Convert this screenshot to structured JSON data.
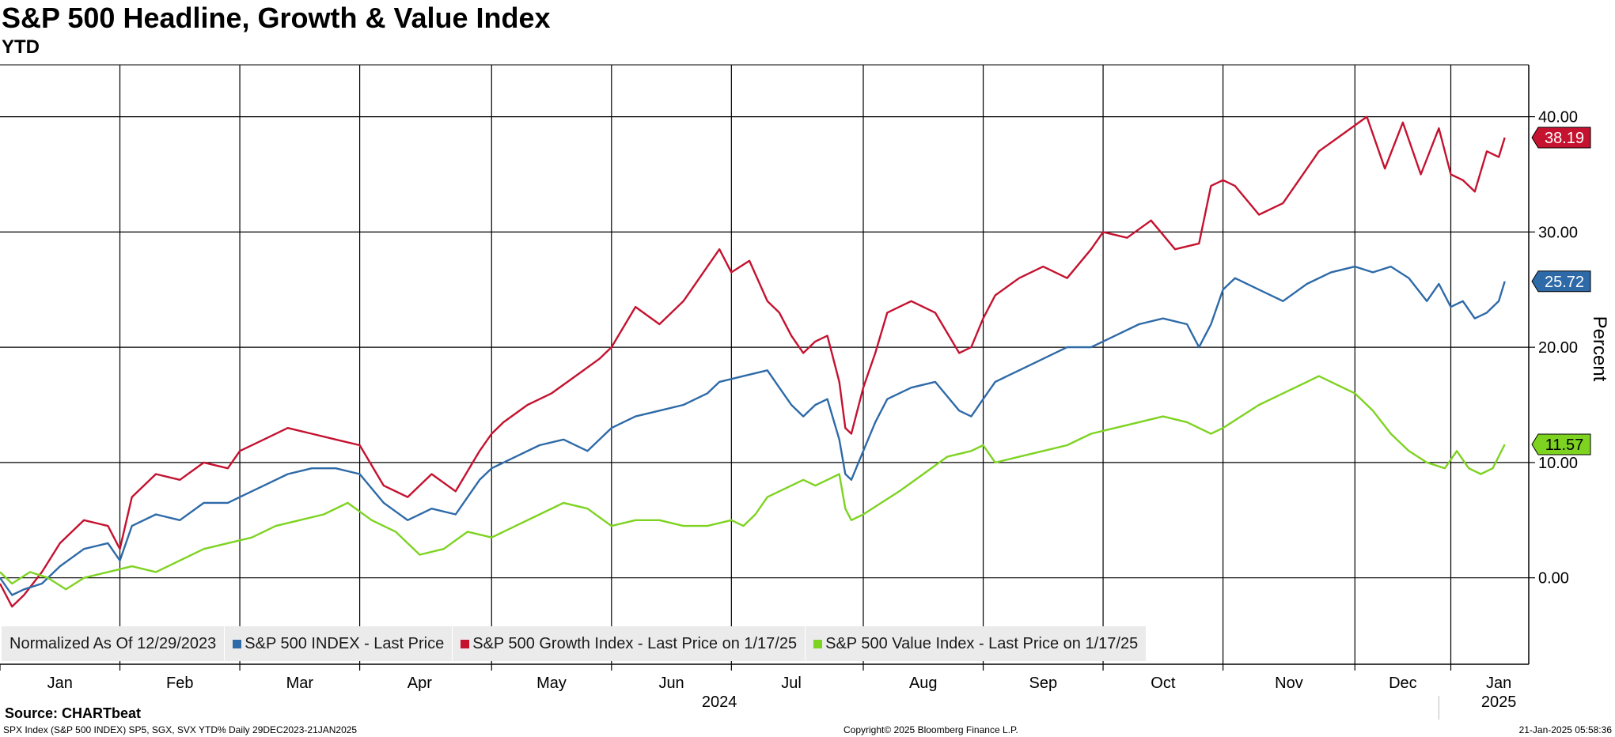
{
  "header": {
    "title": "S&P 500 Headline, Growth & Value Index",
    "subtitle": "YTD"
  },
  "legend": {
    "normalized": "Normalized As Of 12/29/2023",
    "items": [
      {
        "label": "S&P 500 INDEX - Last Price",
        "color": "#2e6aa8"
      },
      {
        "label": "S&P 500 Growth Index - Last Price on 1/17/25",
        "color": "#c4122f"
      },
      {
        "label": "S&P 500 Value Index - Last Price on 1/17/25",
        "color": "#7ed321"
      }
    ]
  },
  "footer": {
    "source": "Source: CHARTbeat",
    "left": "SPX Index (S&P 500 INDEX) SP5, SGX, SVX YTD%  Daily 29DEC2023-21JAN2025",
    "center": "Copyright© 2025 Bloomberg Finance L.P.",
    "right": "21-Jan-2025 05:58:36"
  },
  "chart_data": {
    "type": "line",
    "ylabel": "Percent",
    "ylim": [
      -7.5,
      44.5
    ],
    "yticks": [
      0,
      10,
      20,
      30,
      40
    ],
    "ytick_labels": [
      "0.00",
      "10.00",
      "20.00",
      "30.00",
      "40.00"
    ],
    "months": [
      "Jan",
      "Feb",
      "Mar",
      "Apr",
      "May",
      "Jun",
      "Jul",
      "Aug",
      "Sep",
      "Oct",
      "Nov",
      "Dec",
      "Jan"
    ],
    "month_starts": [
      0,
      1.0,
      2.0,
      3.0,
      4.1,
      5.1,
      6.1,
      7.2,
      8.2,
      9.2,
      10.2,
      11.3,
      12.1
    ],
    "month_label_pos": [
      0.5,
      1.5,
      2.5,
      3.5,
      4.6,
      5.6,
      6.6,
      7.7,
      8.7,
      9.7,
      10.75,
      11.7,
      12.5
    ],
    "xlim": [
      0,
      12.75
    ],
    "year_labels": [
      {
        "text": "2024",
        "pos": 6.0
      },
      {
        "text": "2025",
        "pos": 12.5
      }
    ],
    "series": [
      {
        "name": "S&P 500 Growth Index",
        "color": "#c4122f",
        "last": "38.19",
        "x": [
          0,
          0.1,
          0.2,
          0.35,
          0.5,
          0.7,
          0.9,
          1.0,
          1.1,
          1.3,
          1.5,
          1.7,
          1.9,
          2.0,
          2.2,
          2.4,
          2.6,
          2.8,
          3.0,
          3.2,
          3.4,
          3.6,
          3.8,
          4.0,
          4.1,
          4.2,
          4.4,
          4.6,
          4.8,
          5.0,
          5.1,
          5.3,
          5.5,
          5.7,
          5.9,
          6.0,
          6.1,
          6.25,
          6.4,
          6.5,
          6.6,
          6.7,
          6.8,
          6.9,
          7.0,
          7.05,
          7.1,
          7.2,
          7.3,
          7.4,
          7.6,
          7.8,
          8.0,
          8.1,
          8.2,
          8.3,
          8.5,
          8.7,
          8.9,
          9.1,
          9.2,
          9.4,
          9.6,
          9.8,
          10.0,
          10.1,
          10.2,
          10.3,
          10.5,
          10.7,
          10.9,
          11.0,
          11.2,
          11.4,
          11.55,
          11.7,
          11.85,
          12.0,
          12.1,
          12.2,
          12.3,
          12.4,
          12.5,
          12.55
        ],
        "y": [
          -0.5,
          -2.5,
          -1.5,
          0.5,
          3.0,
          5.0,
          4.5,
          2.5,
          7.0,
          9.0,
          8.5,
          10.0,
          9.5,
          11.0,
          12.0,
          13.0,
          12.5,
          12.0,
          11.5,
          8.0,
          7.0,
          9.0,
          7.5,
          11.0,
          12.5,
          13.5,
          15.0,
          16.0,
          17.5,
          19.0,
          20.0,
          23.5,
          22.0,
          24.0,
          27.0,
          28.5,
          26.5,
          27.5,
          24.0,
          23.0,
          21.0,
          19.5,
          20.5,
          21.0,
          17.0,
          13.0,
          12.5,
          16.5,
          19.5,
          23.0,
          24.0,
          23.0,
          19.5,
          20.0,
          22.5,
          24.5,
          26.0,
          27.0,
          26.0,
          28.5,
          30.0,
          29.5,
          31.0,
          28.5,
          29.0,
          34.0,
          34.5,
          34.0,
          31.5,
          32.5,
          35.5,
          37.0,
          38.5,
          40.0,
          35.5,
          39.5,
          35.0,
          39.0,
          35.0,
          34.5,
          33.5,
          37.0,
          36.5,
          38.19
        ]
      },
      {
        "name": "S&P 500 INDEX",
        "color": "#2e6aa8",
        "last": "25.72",
        "x": [
          0,
          0.1,
          0.2,
          0.35,
          0.5,
          0.7,
          0.9,
          1.0,
          1.1,
          1.3,
          1.5,
          1.7,
          1.9,
          2.0,
          2.2,
          2.4,
          2.6,
          2.8,
          3.0,
          3.2,
          3.4,
          3.6,
          3.8,
          4.0,
          4.1,
          4.3,
          4.5,
          4.7,
          4.9,
          5.1,
          5.3,
          5.5,
          5.7,
          5.9,
          6.0,
          6.2,
          6.4,
          6.5,
          6.6,
          6.7,
          6.8,
          6.9,
          7.0,
          7.05,
          7.1,
          7.2,
          7.3,
          7.4,
          7.6,
          7.8,
          8.0,
          8.1,
          8.2,
          8.3,
          8.5,
          8.7,
          8.9,
          9.1,
          9.3,
          9.5,
          9.7,
          9.9,
          10.0,
          10.1,
          10.2,
          10.3,
          10.5,
          10.7,
          10.9,
          11.1,
          11.3,
          11.45,
          11.6,
          11.75,
          11.9,
          12.0,
          12.1,
          12.2,
          12.3,
          12.4,
          12.5,
          12.55
        ],
        "y": [
          0.0,
          -1.5,
          -1.0,
          -0.5,
          1.0,
          2.5,
          3.0,
          1.5,
          4.5,
          5.5,
          5.0,
          6.5,
          6.5,
          7.0,
          8.0,
          9.0,
          9.5,
          9.5,
          9.0,
          6.5,
          5.0,
          6.0,
          5.5,
          8.5,
          9.5,
          10.5,
          11.5,
          12.0,
          11.0,
          13.0,
          14.0,
          14.5,
          15.0,
          16.0,
          17.0,
          17.5,
          18.0,
          16.5,
          15.0,
          14.0,
          15.0,
          15.5,
          12.0,
          9.0,
          8.5,
          11.0,
          13.5,
          15.5,
          16.5,
          17.0,
          14.5,
          14.0,
          15.5,
          17.0,
          18.0,
          19.0,
          20.0,
          20.0,
          21.0,
          22.0,
          22.5,
          22.0,
          20.0,
          22.0,
          25.0,
          26.0,
          25.0,
          24.0,
          25.5,
          26.5,
          27.0,
          26.5,
          27.0,
          26.0,
          24.0,
          25.5,
          23.5,
          24.0,
          22.5,
          23.0,
          24.0,
          25.72
        ]
      },
      {
        "name": "S&P 500 Value Index",
        "color": "#7ed321",
        "last": "11.57",
        "x": [
          0,
          0.1,
          0.25,
          0.4,
          0.55,
          0.7,
          0.9,
          1.1,
          1.3,
          1.5,
          1.7,
          1.9,
          2.1,
          2.3,
          2.5,
          2.7,
          2.9,
          3.1,
          3.3,
          3.5,
          3.7,
          3.9,
          4.1,
          4.3,
          4.5,
          4.7,
          4.9,
          5.1,
          5.3,
          5.5,
          5.7,
          5.9,
          6.1,
          6.2,
          6.3,
          6.4,
          6.5,
          6.6,
          6.7,
          6.8,
          6.9,
          7.0,
          7.05,
          7.1,
          7.2,
          7.35,
          7.5,
          7.7,
          7.9,
          8.1,
          8.2,
          8.3,
          8.5,
          8.7,
          8.9,
          9.1,
          9.3,
          9.5,
          9.7,
          9.9,
          10.1,
          10.2,
          10.35,
          10.5,
          10.7,
          10.9,
          11.0,
          11.1,
          11.3,
          11.45,
          11.6,
          11.75,
          11.9,
          12.05,
          12.15,
          12.25,
          12.35,
          12.45,
          12.55
        ],
        "y": [
          0.5,
          -0.5,
          0.5,
          0.0,
          -1.0,
          0.0,
          0.5,
          1.0,
          0.5,
          1.5,
          2.5,
          3.0,
          3.5,
          4.5,
          5.0,
          5.5,
          6.5,
          5.0,
          4.0,
          2.0,
          2.5,
          4.0,
          3.5,
          4.5,
          5.5,
          6.5,
          6.0,
          4.5,
          5.0,
          5.0,
          4.5,
          4.5,
          5.0,
          4.5,
          5.5,
          7.0,
          7.5,
          8.0,
          8.5,
          8.0,
          8.5,
          9.0,
          6.0,
          5.0,
          5.5,
          6.5,
          7.5,
          9.0,
          10.5,
          11.0,
          11.5,
          10.0,
          10.5,
          11.0,
          11.5,
          12.5,
          13.0,
          13.5,
          14.0,
          13.5,
          12.5,
          13.0,
          14.0,
          15.0,
          16.0,
          17.0,
          17.5,
          17.0,
          16.0,
          14.5,
          12.5,
          11.0,
          10.0,
          9.5,
          11.0,
          9.5,
          9.0,
          9.5,
          11.57
        ]
      }
    ]
  }
}
